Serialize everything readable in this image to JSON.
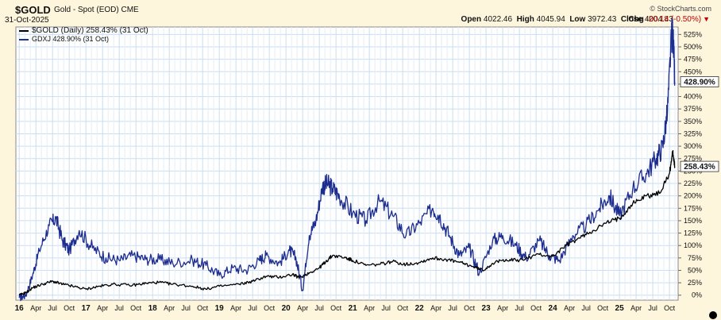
{
  "header": {
    "symbol": "$GOLD",
    "description": "Gold - Spot (EOD) CME",
    "date": "31-Oct-2025",
    "brand": "© StockCharts.com",
    "open_label": "Open",
    "open": "4022.46",
    "high_label": "High",
    "high": "4045.94",
    "low_label": "Low",
    "low": "3972.43",
    "close_label": "Close",
    "close": "4004.43",
    "chg_label": "Chg",
    "chg": "-20.18 (-0.50%)"
  },
  "legend": {
    "gold": "$GOLD (Daily) 258.43% (31 Oct)",
    "gdxj": "GDXJ 428.90% (31 Oct)"
  },
  "colors": {
    "background": "#fdf5dc",
    "plot_bg": "#ffffff",
    "grid": "#c9def0",
    "gold_line": "#000000",
    "gdxj_line": "#1c2c8f",
    "down": "#c00000"
  },
  "chart_data": {
    "type": "line",
    "title": "$GOLD Gold - Spot (EOD) CME",
    "xlabel": "",
    "ylabel": "",
    "ylim": [
      -10,
      540
    ],
    "y_ticks": [
      "0%",
      "25%",
      "50%",
      "75%",
      "100%",
      "125%",
      "150%",
      "175%",
      "200%",
      "225%",
      "250%",
      "275%",
      "300%",
      "325%",
      "350%",
      "375%",
      "400%",
      "425%",
      "450%",
      "475%",
      "500%",
      "525%"
    ],
    "x_ticks": [
      "16",
      "Apr",
      "Jul",
      "Oct",
      "17",
      "Apr",
      "Jul",
      "Oct",
      "18",
      "Apr",
      "Jul",
      "Oct",
      "19",
      "Apr",
      "Jul",
      "Oct",
      "20",
      "Apr",
      "Jul",
      "Oct",
      "21",
      "Apr",
      "Jul",
      "Oct",
      "22",
      "Apr",
      "Jul",
      "Oct",
      "23",
      "Apr",
      "Jul",
      "Oct",
      "24",
      "Apr",
      "Jul",
      "Oct",
      "25",
      "Apr",
      "Jul",
      "Oct"
    ],
    "last_labels": [
      "428.90%",
      "258.43%"
    ],
    "grid": true,
    "legend_position": "top-left",
    "series": [
      {
        "name": "$GOLD (Daily)",
        "color": "#000000",
        "x": [
          2016.0,
          2016.1,
          2016.2,
          2016.35,
          2016.5,
          2016.65,
          2016.8,
          2017.0,
          2017.2,
          2017.4,
          2017.7,
          2017.9,
          2018.1,
          2018.3,
          2018.6,
          2018.8,
          2019.0,
          2019.3,
          2019.5,
          2019.7,
          2019.9,
          2020.1,
          2020.2,
          2020.35,
          2020.5,
          2020.6,
          2020.7,
          2020.9,
          2021.0,
          2021.2,
          2021.4,
          2021.6,
          2021.8,
          2022.0,
          2022.2,
          2022.4,
          2022.6,
          2022.8,
          2022.95,
          2023.1,
          2023.3,
          2023.5,
          2023.8,
          2024.0,
          2024.2,
          2024.4,
          2024.6,
          2024.8,
          2025.0,
          2025.2,
          2025.4,
          2025.6,
          2025.75,
          2025.8,
          2025.83
        ],
        "values": [
          0,
          5,
          15,
          22,
          28,
          22,
          18,
          12,
          18,
          22,
          20,
          24,
          26,
          22,
          18,
          12,
          18,
          22,
          28,
          38,
          36,
          42,
          35,
          45,
          55,
          68,
          80,
          75,
          70,
          60,
          62,
          68,
          62,
          66,
          75,
          72,
          66,
          58,
          50,
          64,
          72,
          70,
          82,
          78,
          100,
          115,
          130,
          145,
          155,
          185,
          200,
          205,
          245,
          290,
          258.43
        ]
      },
      {
        "name": "GDXJ",
        "color": "#1c2c8f",
        "x": [
          2016.0,
          2016.1,
          2016.2,
          2016.3,
          2016.45,
          2016.55,
          2016.65,
          2016.75,
          2016.9,
          2017.1,
          2017.3,
          2017.5,
          2017.7,
          2017.9,
          2018.1,
          2018.3,
          2018.6,
          2018.8,
          2019.0,
          2019.2,
          2019.4,
          2019.6,
          2019.7,
          2019.9,
          2020.05,
          2020.15,
          2020.25,
          2020.35,
          2020.45,
          2020.55,
          2020.62,
          2020.7,
          2020.8,
          2021.0,
          2021.2,
          2021.4,
          2021.6,
          2021.8,
          2022.0,
          2022.2,
          2022.3,
          2022.45,
          2022.6,
          2022.75,
          2022.9,
          2023.1,
          2023.25,
          2023.45,
          2023.6,
          2023.8,
          2023.95,
          2024.1,
          2024.3,
          2024.5,
          2024.7,
          2024.85,
          2025.0,
          2025.2,
          2025.4,
          2025.55,
          2025.65,
          2025.72,
          2025.78,
          2025.8,
          2025.83
        ],
        "values": [
          -5,
          0,
          40,
          90,
          140,
          155,
          110,
          90,
          130,
          95,
          75,
          70,
          80,
          72,
          72,
          65,
          70,
          60,
          40,
          55,
          50,
          70,
          80,
          65,
          90,
          75,
          10,
          120,
          150,
          220,
          225,
          215,
          200,
          165,
          150,
          190,
          160,
          120,
          145,
          175,
          160,
          120,
          80,
          95,
          45,
          110,
          120,
          100,
          75,
          110,
          80,
          70,
          120,
          140,
          175,
          200,
          160,
          215,
          245,
          275,
          300,
          370,
          520,
          530,
          428.9
        ]
      }
    ]
  }
}
